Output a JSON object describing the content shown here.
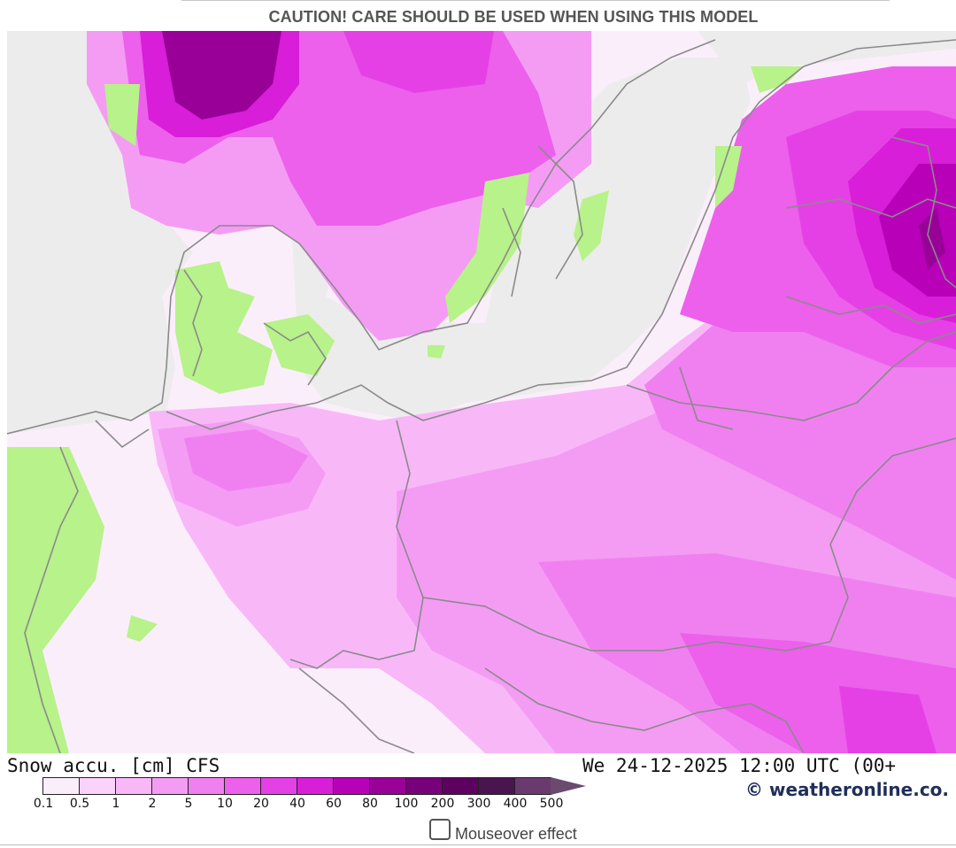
{
  "header": {
    "caution": "CAUTION! CARE SHOULD BE USED WHEN USING THIS MODEL"
  },
  "map": {
    "variable_label": "Snow accu. [cm] CFS",
    "valid_time": "We 24-12-2025 12:00 UTC (00+",
    "credit": "© weatheronline.co.",
    "land_no_snow_color": "#b8f28a",
    "sea_color": "#ececec",
    "border_color": "#8a8a8a"
  },
  "legend": {
    "values": [
      "0.1",
      "0.5",
      "1",
      "2",
      "5",
      "10",
      "20",
      "40",
      "60",
      "80",
      "100",
      "200",
      "300",
      "400",
      "500"
    ],
    "colors": [
      "#fbeefb",
      "#fad2fa",
      "#f8b8f8",
      "#f49cf4",
      "#f080f0",
      "#ec60ec",
      "#e540e5",
      "#d81ed8",
      "#b800b8",
      "#980098",
      "#78007a",
      "#5e0060",
      "#4a1450",
      "#6a3a6e"
    ],
    "arrow_color": "#6a4a6e"
  },
  "controls": {
    "mouseover_label": "Mouseover effect",
    "mouseover_checked": false
  }
}
